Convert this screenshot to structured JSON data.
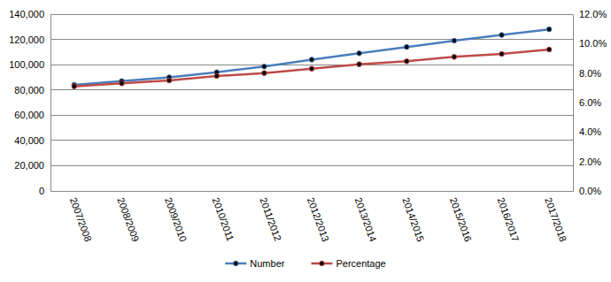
{
  "chart_data": {
    "type": "line",
    "categories": [
      "2007/2008",
      "2008/2009",
      "2009/2010",
      "2010/2011",
      "2011/2012",
      "2012/2013",
      "2013/2014",
      "2014/2015",
      "2015/2016",
      "2016/2017",
      "2017/2018"
    ],
    "series": [
      {
        "name": "Number",
        "color": "#4a7ebb",
        "marker": "circle",
        "values": [
          84000,
          87000,
          90000,
          94000,
          98500,
          104000,
          109000,
          114000,
          119000,
          123500,
          128000
        ]
      },
      {
        "name": "Percentage",
        "color": "#be4b48",
        "marker": "circle",
        "axis": "y2",
        "values": [
          7.1,
          7.3,
          7.5,
          7.8,
          8.0,
          8.3,
          8.6,
          8.8,
          9.1,
          9.3,
          9.6
        ]
      }
    ],
    "ylim": [
      0,
      140000
    ],
    "yticks": [
      0,
      {
        "value": 20000,
        "label": "20,000"
      },
      {
        "value": 40000,
        "label": "40,000"
      },
      {
        "value": 60000,
        "label": "60,000"
      },
      {
        "value": 80000,
        "label": "80,000"
      },
      {
        "value": 100000,
        "label": "100,000"
      },
      {
        "value": 120000,
        "label": "120,000"
      },
      {
        "value": 140000,
        "label": "140,000"
      }
    ],
    "y2lim": [
      0,
      12
    ],
    "y2ticks": [
      {
        "value": 0,
        "label": "0.0%"
      },
      {
        "value": 2,
        "label": "2.0%"
      },
      {
        "value": 4,
        "label": "4.0%"
      },
      {
        "value": 6,
        "label": "6.0%"
      },
      {
        "value": 8,
        "label": "8.0%"
      },
      {
        "value": 10,
        "label": "10.0%"
      },
      {
        "value": 12,
        "label": "12.0%"
      }
    ],
    "grid": true,
    "legend": "bottom"
  }
}
